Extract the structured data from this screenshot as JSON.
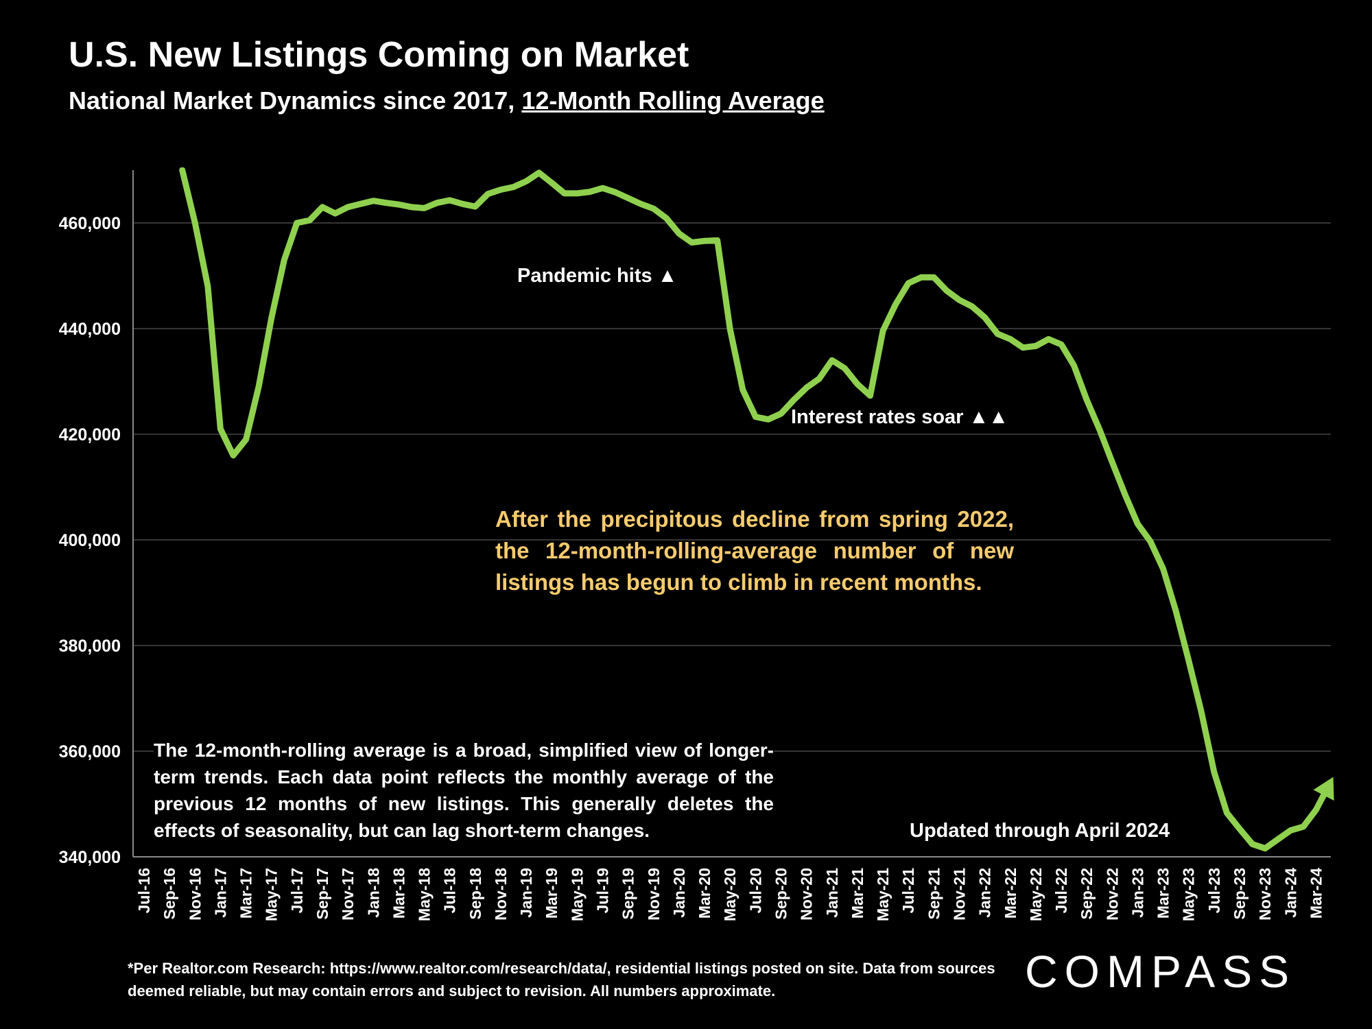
{
  "header": {
    "title": "U.S. New Listings Coming on Market",
    "subtitle_prefix": "National Market Dynamics since 2017, ",
    "subtitle_underlined": "12-Month Rolling Average"
  },
  "annotations": {
    "pandemic": "Pandemic hits ▲",
    "interest": "Interest rates soar ▲▲",
    "updated": "Updated through April 2024",
    "yellow_note": "After the precipitous decline from spring 2022, the 12-month-rolling-average number of new listings has begun to climb in recent months.",
    "left_note": "The 12-month-rolling average is a broad, simplified view of longer-term trends. Each data point reflects the monthly average of the previous 12 months of new listings. This generally deletes the effects of seasonality, but can lag short-term changes."
  },
  "footer": {
    "source": "*Per Realtor.com Research:  https://www.realtor.com/research/data/, residential listings posted on site. Data from sources deemed reliable, but may contain errors and subject to revision. All numbers approximate.",
    "logo": "COMPASS"
  },
  "colors": {
    "line": "#8fd14f",
    "grid": "#555555",
    "accent_text": "#f7cb6e"
  },
  "chart_data": {
    "type": "line",
    "title": "U.S. New Listings Coming on Market",
    "xlabel": "",
    "ylabel": "",
    "ylim": [
      340000,
      470000
    ],
    "yticks": [
      340000,
      360000,
      380000,
      400000,
      420000,
      440000,
      460000
    ],
    "ytick_labels": [
      "340,000",
      "360,000",
      "380,000",
      "400,000",
      "420,000",
      "440,000",
      "460,000"
    ],
    "categories": [
      "Jul-16",
      "Aug-16",
      "Sep-16",
      "Oct-16",
      "Nov-16",
      "Dec-16",
      "Jan-17",
      "Feb-17",
      "Mar-17",
      "Apr-17",
      "May-17",
      "Jun-17",
      "Jul-17",
      "Aug-17",
      "Sep-17",
      "Oct-17",
      "Nov-17",
      "Dec-17",
      "Jan-18",
      "Feb-18",
      "Mar-18",
      "Apr-18",
      "May-18",
      "Jun-18",
      "Jul-18",
      "Aug-18",
      "Sep-18",
      "Oct-18",
      "Nov-18",
      "Dec-18",
      "Jan-19",
      "Feb-19",
      "Mar-19",
      "Apr-19",
      "May-19",
      "Jun-19",
      "Jul-19",
      "Aug-19",
      "Sep-19",
      "Oct-19",
      "Nov-19",
      "Dec-19",
      "Jan-20",
      "Feb-20",
      "Mar-20",
      "Apr-20",
      "May-20",
      "Jun-20",
      "Jul-20",
      "Aug-20",
      "Sep-20",
      "Oct-20",
      "Nov-20",
      "Dec-20",
      "Jan-21",
      "Feb-21",
      "Mar-21",
      "Apr-21",
      "May-21",
      "Jun-21",
      "Jul-21",
      "Aug-21",
      "Sep-21",
      "Oct-21",
      "Nov-21",
      "Dec-21",
      "Jan-22",
      "Feb-22",
      "Mar-22",
      "Apr-22",
      "May-22",
      "Jun-22",
      "Jul-22",
      "Aug-22",
      "Sep-22",
      "Oct-22",
      "Nov-22",
      "Dec-22",
      "Jan-23",
      "Feb-23",
      "Mar-23",
      "Apr-23",
      "May-23",
      "Jun-23",
      "Jul-23",
      "Aug-23",
      "Sep-23",
      "Oct-23",
      "Nov-23",
      "Dec-23",
      "Jan-24",
      "Feb-24",
      "Mar-24",
      "Apr-24"
    ],
    "xtick_labels": [
      "Jul-16",
      "Sep-16",
      "Nov-16",
      "Jan-17",
      "Mar-17",
      "May-17",
      "Jul-17",
      "Sep-17",
      "Nov-17",
      "Jan-18",
      "Mar-18",
      "May-18",
      "Jul-18",
      "Sep-18",
      "Nov-18",
      "Jan-19",
      "Mar-19",
      "May-19",
      "Jul-19",
      "Sep-19",
      "Nov-19",
      "Jan-20",
      "Mar-20",
      "May-20",
      "Jul-20",
      "Sep-20",
      "Nov-20",
      "Jan-21",
      "Mar-21",
      "May-21",
      "Jul-21",
      "Sep-21",
      "Nov-21",
      "Jan-22",
      "Mar-22",
      "May-22",
      "Jul-22",
      "Sep-22",
      "Nov-22",
      "Jan-23",
      "Mar-23",
      "May-23",
      "Jul-23",
      "Sep-23",
      "Nov-23",
      "Jan-24",
      "Mar-24"
    ],
    "series": [
      {
        "name": "New listings (12-month rolling average)",
        "values": [
          null,
          null,
          null,
          470000,
          460000,
          448000,
          421000,
          416000,
          419000,
          429000,
          442000,
          453000,
          460000,
          460500,
          463000,
          461800,
          463000,
          463600,
          464200,
          463800,
          463500,
          463000,
          462800,
          463800,
          464300,
          463600,
          463100,
          465500,
          466300,
          466800,
          467900,
          469500,
          467600,
          465600,
          465600,
          465900,
          466600,
          465800,
          464700,
          463600,
          462700,
          460900,
          458000,
          456300,
          456600,
          456700,
          439900,
          428400,
          423300,
          422800,
          423900,
          426500,
          428800,
          430500,
          434000,
          432500,
          429500,
          427300,
          439600,
          444600,
          448600,
          449700,
          449700,
          447200,
          445400,
          444200,
          442100,
          439000,
          438000,
          436400,
          436700,
          438000,
          437000,
          433000,
          426500,
          420900,
          414700,
          408600,
          403000,
          399700,
          394500,
          386500,
          377200,
          367400,
          356000,
          348300,
          345300,
          342400,
          341600,
          343300,
          345000,
          345700,
          348900,
          353500
        ]
      }
    ]
  }
}
